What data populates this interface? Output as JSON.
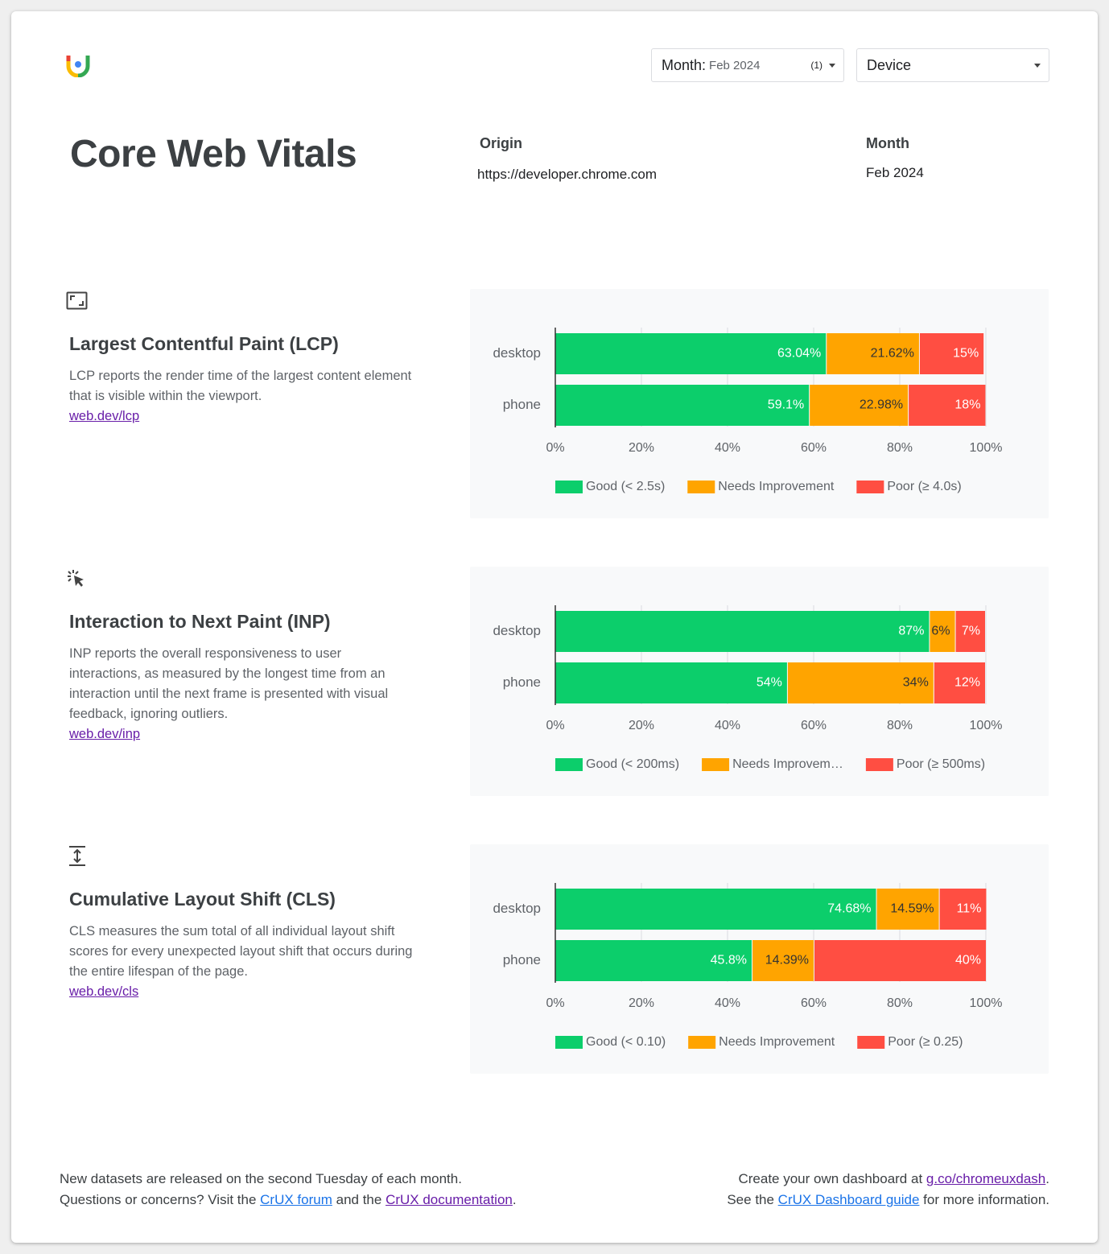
{
  "header": {
    "month_filter": {
      "label": "Month:",
      "value": "Feb 2024",
      "count": "(1)"
    },
    "device_filter": "Device",
    "title": "Core Web Vitals",
    "origin_label": "Origin",
    "origin": "https://developer.chrome.com",
    "month_label": "Month",
    "month": "Feb 2024"
  },
  "metrics": [
    {
      "name": "Largest Contentful Paint (LCP)",
      "description": "LCP reports the render time of the largest content element that is visible within the viewport.",
      "link": "web.dev/lcp"
    },
    {
      "name": "Interaction to Next Paint (INP)",
      "description": "INP reports the overall responsiveness to user interactions, as measured by the longest time from an interaction until the next frame is presented with visual feedback, ignoring outliers.",
      "link": "web.dev/inp"
    },
    {
      "name": "Cumulative Layout Shift (CLS)",
      "description": "CLS measures the sum total of all individual layout shift scores for every unexpected layout shift that occurs during the entire lifespan of the page.",
      "link": "web.dev/cls"
    }
  ],
  "chart_data": [
    {
      "type": "bar",
      "orientation": "horizontal",
      "stacked": true,
      "categories": [
        "desktop",
        "phone"
      ],
      "series": [
        {
          "name": "Good (< 2.5s)",
          "color": "#0cce6b",
          "label_color": "#ffffff",
          "values": [
            63.04,
            59.1
          ],
          "value_labels": [
            "63.04%",
            "59.1%"
          ]
        },
        {
          "name": "Needs Improvement",
          "color": "#ffa400",
          "label_color": "#333333",
          "values": [
            21.62,
            22.98
          ],
          "value_labels": [
            "21.62%",
            "22.98%"
          ]
        },
        {
          "name": "Poor (≥ 4.0s)",
          "color": "#ff4e42",
          "label_color": "#ffffff",
          "values": [
            15,
            18
          ],
          "value_labels": [
            "15%",
            "18%"
          ]
        }
      ],
      "xlim": [
        0,
        100
      ],
      "xticks": [
        {
          "value": 0,
          "label": "0%"
        },
        {
          "value": 20,
          "label": "20%"
        },
        {
          "value": 40,
          "label": "40%"
        },
        {
          "value": 60,
          "label": "60%"
        },
        {
          "value": 80,
          "label": "80%"
        },
        {
          "value": 100,
          "label": "100%"
        }
      ],
      "grid": true,
      "legend": "bottom"
    },
    {
      "type": "bar",
      "orientation": "horizontal",
      "stacked": true,
      "categories": [
        "desktop",
        "phone"
      ],
      "series": [
        {
          "name": "Good (< 200ms)",
          "color": "#0cce6b",
          "label_color": "#ffffff",
          "values": [
            87,
            54
          ],
          "value_labels": [
            "87%",
            "54%"
          ]
        },
        {
          "name": "Needs Improvem…",
          "color": "#ffa400",
          "label_color": "#333333",
          "values": [
            6,
            34
          ],
          "value_labels": [
            "6%",
            "34%"
          ]
        },
        {
          "name": "Poor (≥ 500ms)",
          "color": "#ff4e42",
          "label_color": "#ffffff",
          "values": [
            7,
            12
          ],
          "value_labels": [
            "7%",
            "12%"
          ]
        }
      ],
      "xlim": [
        0,
        100
      ],
      "xticks": [
        {
          "value": 0,
          "label": "0%"
        },
        {
          "value": 20,
          "label": "20%"
        },
        {
          "value": 40,
          "label": "40%"
        },
        {
          "value": 60,
          "label": "60%"
        },
        {
          "value": 80,
          "label": "80%"
        },
        {
          "value": 100,
          "label": "100%"
        }
      ],
      "grid": true,
      "legend": "bottom"
    },
    {
      "type": "bar",
      "orientation": "horizontal",
      "stacked": true,
      "categories": [
        "desktop",
        "phone"
      ],
      "series": [
        {
          "name": "Good (< 0.10)",
          "color": "#0cce6b",
          "label_color": "#ffffff",
          "values": [
            74.68,
            45.8
          ],
          "value_labels": [
            "74.68%",
            "45.8%"
          ]
        },
        {
          "name": "Needs Improvement",
          "color": "#ffa400",
          "label_color": "#333333",
          "values": [
            14.59,
            14.39
          ],
          "value_labels": [
            "14.59%",
            "14.39%"
          ]
        },
        {
          "name": "Poor (≥ 0.25)",
          "color": "#ff4e42",
          "label_color": "#ffffff",
          "values": [
            11,
            40
          ],
          "value_labels": [
            "11%",
            "40%"
          ]
        }
      ],
      "xlim": [
        0,
        100
      ],
      "xticks": [
        {
          "value": 0,
          "label": "0%"
        },
        {
          "value": 20,
          "label": "20%"
        },
        {
          "value": 40,
          "label": "40%"
        },
        {
          "value": 60,
          "label": "60%"
        },
        {
          "value": 80,
          "label": "80%"
        },
        {
          "value": 100,
          "label": "100%"
        }
      ],
      "grid": true,
      "legend": "bottom"
    }
  ],
  "footer": {
    "left": {
      "line1": "New datasets are released on the second Tuesday of each month.",
      "line2": [
        "Questions or concerns? Visit the ",
        "CrUX forum",
        " and the ",
        "CrUX documentation",
        "."
      ]
    },
    "right": {
      "line1": [
        "Create your own dashboard at ",
        "g.co/chromeuxdash",
        "."
      ],
      "line2": [
        "See the ",
        "CrUX Dashboard guide",
        " for more information."
      ]
    }
  }
}
